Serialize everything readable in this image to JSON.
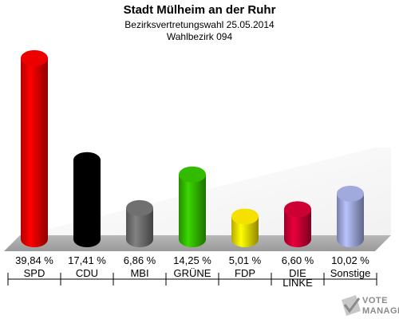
{
  "title": "Stadt Mülheim an der Ruhr",
  "subtitle": "Bezirksvertretungswahl 25.05.2014",
  "subtitle2": "Wahlbezirk 094",
  "chart_data": {
    "type": "bar",
    "title": "Stadt Mülheim an der Ruhr",
    "categories": [
      "SPD",
      "CDU",
      "MBI",
      "GRÜNE",
      "FDP",
      "DIE LINKE",
      "Sonstige"
    ],
    "category_lines": [
      [
        "SPD"
      ],
      [
        "CDU"
      ],
      [
        "MBI"
      ],
      [
        "GRÜNE"
      ],
      [
        "FDP"
      ],
      [
        "DIE",
        "LINKE"
      ],
      [
        "Sonstige"
      ]
    ],
    "values": [
      39.84,
      17.41,
      6.86,
      14.25,
      5.01,
      6.6,
      10.02
    ],
    "value_labels": [
      "39,84 %",
      "17,41 %",
      "6,86 %",
      "14,25 %",
      "5,01 %",
      "6,60 %",
      "10,02 %"
    ],
    "colors": [
      "#ee0000",
      "#000000",
      "#707070",
      "#33bb00",
      "#f5e000",
      "#cc0033",
      "#a0aadd"
    ],
    "ylim": [
      0,
      40
    ],
    "grid": false,
    "legend": "none"
  },
  "watermark": {
    "line1": "VOTE",
    "line2": "MANAGER"
  }
}
